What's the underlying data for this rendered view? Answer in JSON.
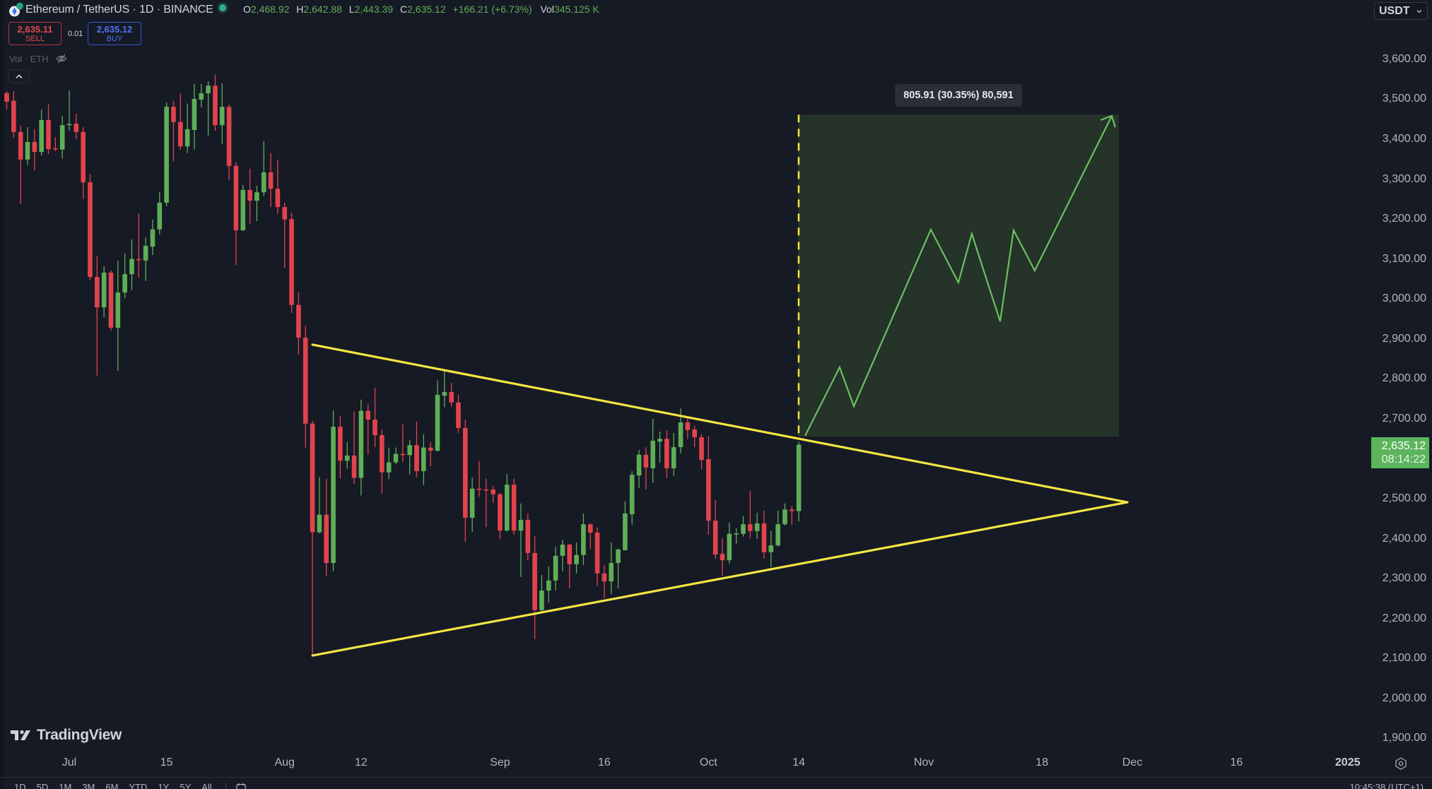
{
  "header": {
    "title": "Ethereum / TetherUS · 1D · BINANCE",
    "ohlc": {
      "o_label": "O",
      "o": "2,468.92",
      "h_label": "H",
      "h": "2,642.88",
      "l_label": "L",
      "l": "2,443.39",
      "c_label": "C",
      "c": "2,635.12",
      "change": "+166.21 (+6.73%)",
      "vol_label": "Vol",
      "vol": "345.125 K"
    }
  },
  "trade": {
    "sell_price": "2,635.11",
    "sell_label": "SELL",
    "spread": "0.01",
    "buy_price": "2,635.12",
    "buy_label": "BUY"
  },
  "indicator": {
    "label": "Vol · ETH"
  },
  "currency": {
    "selected": "USDT"
  },
  "last_price": {
    "price": "2,635.12",
    "countdown": "08:14:22"
  },
  "projection_label": "805.91 (30.35%) 80,591",
  "branding": {
    "logo_text": "TradingView"
  },
  "bottom_toolbar": {
    "ranges": [
      "1D",
      "5D",
      "1M",
      "3M",
      "6M",
      "YTD",
      "1Y",
      "5Y",
      "All"
    ],
    "clock": "10:45:38 (UTC+1)"
  },
  "colors": {
    "background": "#161a25",
    "up": "#5fae57",
    "down": "#e2434d",
    "drawing_yellow": "#f4e542",
    "projection_fill": "#253328",
    "projection_path": "#6cbf62",
    "last_price_bg": "#5cb45c"
  },
  "chart_data": {
    "type": "candlestick",
    "title": "Ethereum / TetherUS · 1D · BINANCE",
    "xlabel": "",
    "ylabel": "USDT",
    "xlim": [
      -0.97,
      194.86
    ],
    "ylim": [
      1868.7,
      3748.4
    ],
    "grid": false,
    "yticks": [
      1900,
      2000,
      2100,
      2200,
      2300,
      2400,
      2500,
      2700,
      2800,
      2900,
      3000,
      3100,
      3200,
      3300,
      3400,
      3500,
      3600
    ],
    "ytick_labels": [
      "1,900.00",
      "2,000.00",
      "2,100.00",
      "2,200.00",
      "2,300.00",
      "2,400.00",
      "2,500.00",
      "2,700.00",
      "2,800.00",
      "2,900.00",
      "3,000.00",
      "3,100.00",
      "3,200.00",
      "3,300.00",
      "3,400.00",
      "3,500.00",
      "3,600.00"
    ],
    "xticks": [
      {
        "i": 9,
        "label": "Jul"
      },
      {
        "i": 23,
        "label": "15"
      },
      {
        "i": 40,
        "label": "Aug"
      },
      {
        "i": 51,
        "label": "12"
      },
      {
        "i": 71,
        "label": "Sep"
      },
      {
        "i": 86,
        "label": "16"
      },
      {
        "i": 101,
        "label": "Oct"
      },
      {
        "i": 114,
        "label": "14"
      },
      {
        "i": 132,
        "label": "Nov"
      },
      {
        "i": 149,
        "label": "18"
      },
      {
        "i": 162,
        "label": "Dec"
      },
      {
        "i": 177,
        "label": "16"
      },
      {
        "i": 193,
        "label": "2025",
        "year": true
      }
    ],
    "candle_fields": [
      "open",
      "high",
      "low",
      "close"
    ],
    "candles": [
      [
        3515,
        3520,
        3474,
        3494
      ],
      [
        3496,
        3520,
        3404,
        3418
      ],
      [
        3418,
        3434,
        3237,
        3349
      ],
      [
        3349,
        3430,
        3335,
        3393
      ],
      [
        3393,
        3425,
        3322,
        3368
      ],
      [
        3368,
        3474,
        3359,
        3448
      ],
      [
        3448,
        3487,
        3363,
        3375
      ],
      [
        3377,
        3405,
        3370,
        3375
      ],
      [
        3374,
        3458,
        3351,
        3435
      ],
      [
        3435,
        3522,
        3421,
        3438
      ],
      [
        3439,
        3464,
        3400,
        3418
      ],
      [
        3418,
        3430,
        3250,
        3292
      ],
      [
        3292,
        3312,
        3048,
        3055
      ],
      [
        3055,
        3107,
        2808,
        2979
      ],
      [
        2979,
        3082,
        2954,
        3066
      ],
      [
        3066,
        3071,
        2921,
        2928
      ],
      [
        2928,
        3096,
        2820,
        3016
      ],
      [
        3016,
        3114,
        3002,
        3062
      ],
      [
        3062,
        3149,
        3022,
        3100
      ],
      [
        3100,
        3214,
        3054,
        3098
      ],
      [
        3096,
        3154,
        3045,
        3133
      ],
      [
        3131,
        3199,
        3110,
        3174
      ],
      [
        3174,
        3267,
        3161,
        3241
      ],
      [
        3241,
        3492,
        3232,
        3481
      ],
      [
        3481,
        3496,
        3345,
        3443
      ],
      [
        3443,
        3515,
        3374,
        3382
      ],
      [
        3382,
        3489,
        3365,
        3425
      ],
      [
        3423,
        3538,
        3374,
        3501
      ],
      [
        3499,
        3538,
        3480,
        3515
      ],
      [
        3515,
        3545,
        3409,
        3534
      ],
      [
        3534,
        3561,
        3421,
        3435
      ],
      [
        3435,
        3540,
        3388,
        3481
      ],
      [
        3481,
        3487,
        3297,
        3333
      ],
      [
        3333,
        3342,
        3085,
        3172
      ],
      [
        3172,
        3285,
        3170,
        3273
      ],
      [
        3273,
        3326,
        3188,
        3246
      ],
      [
        3246,
        3283,
        3195,
        3267
      ],
      [
        3267,
        3395,
        3257,
        3317
      ],
      [
        3317,
        3365,
        3230,
        3276
      ],
      [
        3276,
        3349,
        3213,
        3230
      ],
      [
        3230,
        3241,
        3078,
        3199
      ],
      [
        3200,
        3216,
        2965,
        2985
      ],
      [
        2985,
        3016,
        2861,
        2903
      ],
      [
        2903,
        2933,
        2628,
        2688
      ],
      [
        2688,
        2695,
        2109,
        2416
      ],
      [
        2416,
        2554,
        2413,
        2460
      ],
      [
        2460,
        2549,
        2307,
        2339
      ],
      [
        2339,
        2721,
        2318,
        2680
      ],
      [
        2680,
        2706,
        2551,
        2595
      ],
      [
        2595,
        2642,
        2575,
        2608
      ],
      [
        2608,
        2718,
        2537,
        2552
      ],
      [
        2552,
        2748,
        2508,
        2720
      ],
      [
        2720,
        2737,
        2610,
        2698
      ],
      [
        2698,
        2778,
        2629,
        2659
      ],
      [
        2659,
        2673,
        2513,
        2566
      ],
      [
        2566,
        2628,
        2549,
        2591
      ],
      [
        2591,
        2628,
        2586,
        2612
      ],
      [
        2612,
        2686,
        2592,
        2609
      ],
      [
        2609,
        2647,
        2561,
        2634
      ],
      [
        2634,
        2693,
        2554,
        2569
      ],
      [
        2569,
        2661,
        2534,
        2628
      ],
      [
        2628,
        2642,
        2581,
        2620
      ],
      [
        2620,
        2796,
        2618,
        2760
      ],
      [
        2758,
        2819,
        2729,
        2767
      ],
      [
        2767,
        2790,
        2731,
        2741
      ],
      [
        2741,
        2760,
        2665,
        2677
      ],
      [
        2677,
        2698,
        2392,
        2452
      ],
      [
        2452,
        2553,
        2417,
        2525
      ],
      [
        2525,
        2594,
        2505,
        2523
      ],
      [
        2523,
        2550,
        2429,
        2521
      ],
      [
        2523,
        2532,
        2489,
        2511
      ],
      [
        2511,
        2514,
        2399,
        2420
      ],
      [
        2420,
        2562,
        2418,
        2535
      ],
      [
        2535,
        2550,
        2410,
        2420
      ],
      [
        2420,
        2488,
        2304,
        2447
      ],
      [
        2447,
        2463,
        2346,
        2364
      ],
      [
        2364,
        2406,
        2148,
        2221
      ],
      [
        2221,
        2309,
        2217,
        2270
      ],
      [
        2270,
        2330,
        2240,
        2295
      ],
      [
        2295,
        2380,
        2270,
        2357
      ],
      [
        2357,
        2397,
        2318,
        2385
      ],
      [
        2385,
        2387,
        2275,
        2336
      ],
      [
        2336,
        2390,
        2313,
        2359
      ],
      [
        2359,
        2463,
        2334,
        2436
      ],
      [
        2436,
        2438,
        2374,
        2415
      ],
      [
        2415,
        2428,
        2281,
        2313
      ],
      [
        2313,
        2334,
        2251,
        2293
      ],
      [
        2293,
        2390,
        2261,
        2339
      ],
      [
        2339,
        2375,
        2275,
        2373
      ],
      [
        2371,
        2493,
        2370,
        2463
      ],
      [
        2461,
        2569,
        2435,
        2560
      ],
      [
        2558,
        2622,
        2527,
        2610
      ],
      [
        2610,
        2629,
        2523,
        2578
      ],
      [
        2576,
        2700,
        2539,
        2645
      ],
      [
        2643,
        2668,
        2590,
        2650
      ],
      [
        2650,
        2672,
        2551,
        2576
      ],
      [
        2576,
        2664,
        2557,
        2629
      ],
      [
        2629,
        2726,
        2613,
        2691
      ],
      [
        2691,
        2702,
        2649,
        2672
      ],
      [
        2673,
        2682,
        2629,
        2654
      ],
      [
        2654,
        2661,
        2574,
        2597
      ],
      [
        2599,
        2657,
        2410,
        2445
      ],
      [
        2445,
        2496,
        2350,
        2360
      ],
      [
        2362,
        2401,
        2307,
        2346
      ],
      [
        2346,
        2440,
        2337,
        2412
      ],
      [
        2411,
        2426,
        2387,
        2413
      ],
      [
        2412,
        2456,
        2405,
        2436
      ],
      [
        2436,
        2519,
        2401,
        2419
      ],
      [
        2419,
        2465,
        2399,
        2438
      ],
      [
        2438,
        2470,
        2350,
        2366
      ],
      [
        2366,
        2419,
        2329,
        2383
      ],
      [
        2383,
        2470,
        2380,
        2436
      ],
      [
        2436,
        2488,
        2433,
        2473
      ],
      [
        2473,
        2482,
        2435,
        2469
      ],
      [
        2468.92,
        2642.88,
        2443.39,
        2635.12
      ]
    ],
    "last_close": 2635.12,
    "annotations": {
      "triangle": {
        "upper": [
          [
            44,
            2885.5
          ],
          [
            161.29,
            2491.1
          ]
        ],
        "lower": [
          [
            44,
            2107.4
          ],
          [
            161.29,
            2491.1
          ]
        ]
      },
      "projection": {
        "i0": 113.88,
        "i1": 160.07,
        "p_low": 2655.4,
        "p_high": 3461.3,
        "label": "805.91 (30.35%) 80,591",
        "path": [
          [
            114.9,
            2657.4
          ],
          [
            119.88,
            2828.9
          ],
          [
            121.92,
            2731.6
          ],
          [
            133.0,
            3173.7
          ],
          [
            136.97,
            3041.1
          ],
          [
            138.9,
            3163.1
          ],
          [
            142.98,
            2943.8
          ],
          [
            144.91,
            3171.9
          ],
          [
            147.96,
            3071.1
          ],
          [
            159.05,
            3458.4
          ]
        ]
      }
    }
  }
}
